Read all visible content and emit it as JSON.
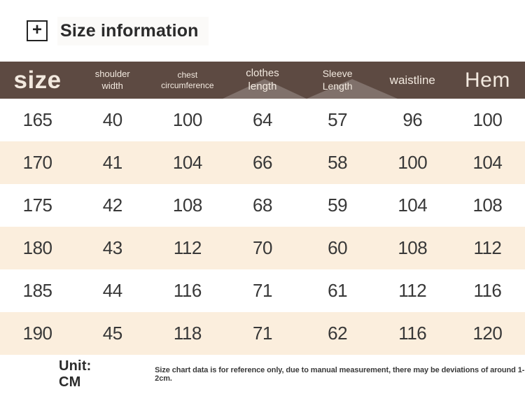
{
  "title": {
    "icon_glyph": "+",
    "label": "Size information"
  },
  "colors": {
    "header_bg": "#5d4a42",
    "header_text": "#f2e9df",
    "row_alt_bg": "#fbeedd",
    "body_text": "#383838"
  },
  "table": {
    "columns": [
      {
        "key": "size",
        "line1": "size",
        "line2": ""
      },
      {
        "key": "shoulder-width",
        "line1": "shoulder",
        "line2": "width"
      },
      {
        "key": "chest-circumference",
        "line1": "chest",
        "line2": "circumference"
      },
      {
        "key": "clothes-length",
        "line1": "clothes",
        "line2": "length"
      },
      {
        "key": "sleeve-length",
        "line1": "Sleeve",
        "line2": "Length"
      },
      {
        "key": "waistline",
        "line1": "waistline",
        "line2": ""
      },
      {
        "key": "hem",
        "line1": "Hem",
        "line2": ""
      }
    ],
    "rows": [
      [
        "165",
        "40",
        "100",
        "64",
        "57",
        "96",
        "100"
      ],
      [
        "170",
        "41",
        "104",
        "66",
        "58",
        "100",
        "104"
      ],
      [
        "175",
        "42",
        "108",
        "68",
        "59",
        "104",
        "108"
      ],
      [
        "180",
        "43",
        "112",
        "70",
        "60",
        "108",
        "112"
      ],
      [
        "185",
        "44",
        "116",
        "71",
        "61",
        "112",
        "116"
      ],
      [
        "190",
        "45",
        "118",
        "71",
        "62",
        "116",
        "120"
      ]
    ]
  },
  "footer": {
    "unit_label": "Unit: CM",
    "disclaimer": "Size chart data is for reference only, due to manual measurement, there may be deviations of around 1-2cm."
  }
}
